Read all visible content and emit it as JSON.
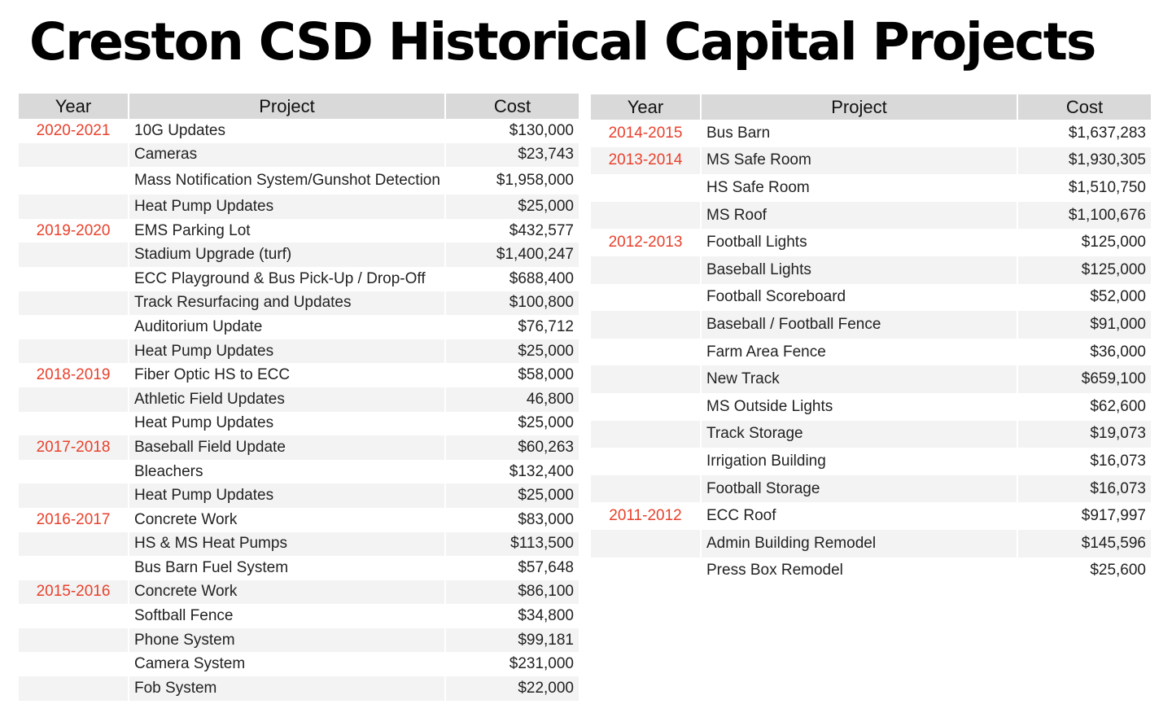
{
  "title": "Creston CSD Historical Capital Projects",
  "headers": {
    "year": "Year",
    "project": "Project",
    "cost": "Cost"
  },
  "left_rows": [
    {
      "year": "2020-2021",
      "project": "10G Updates",
      "cost": "$130,000"
    },
    {
      "year": "",
      "project": "Cameras",
      "cost": "$23,743"
    },
    {
      "year": "",
      "project": "Mass Notification System/Gunshot Detection",
      "cost": "$1,958,000"
    },
    {
      "year": "",
      "project": "Heat Pump Updates",
      "cost": "$25,000"
    },
    {
      "year": "2019-2020",
      "project": "EMS Parking Lot",
      "cost": "$432,577"
    },
    {
      "year": "",
      "project": "Stadium Upgrade (turf)",
      "cost": "$1,400,247"
    },
    {
      "year": "",
      "project": "ECC Playground & Bus Pick-Up / Drop-Off",
      "cost": "$688,400"
    },
    {
      "year": "",
      "project": "Track Resurfacing and Updates",
      "cost": "$100,800"
    },
    {
      "year": "",
      "project": "Auditorium Update",
      "cost": "$76,712"
    },
    {
      "year": "",
      "project": "Heat Pump Updates",
      "cost": "$25,000"
    },
    {
      "year": "2018-2019",
      "project": "Fiber Optic HS to ECC",
      "cost": "$58,000"
    },
    {
      "year": "",
      "project": "Athletic Field Updates",
      "cost": "46,800"
    },
    {
      "year": "",
      "project": "Heat Pump Updates",
      "cost": "$25,000"
    },
    {
      "year": "2017-2018",
      "project": "Baseball Field Update",
      "cost": "$60,263"
    },
    {
      "year": "",
      "project": "Bleachers",
      "cost": "$132,400"
    },
    {
      "year": "",
      "project": "Heat Pump Updates",
      "cost": "$25,000"
    },
    {
      "year": "2016-2017",
      "project": "Concrete Work",
      "cost": "$83,000"
    },
    {
      "year": "",
      "project": "HS & MS Heat Pumps",
      "cost": "$113,500"
    },
    {
      "year": "",
      "project": "Bus Barn Fuel System",
      "cost": "$57,648"
    },
    {
      "year": "2015-2016",
      "project": "Concrete Work",
      "cost": "$86,100"
    },
    {
      "year": "",
      "project": "Softball Fence",
      "cost": "$34,800"
    },
    {
      "year": "",
      "project": "Phone System",
      "cost": "$99,181"
    },
    {
      "year": "",
      "project": "Camera System",
      "cost": "$231,000"
    },
    {
      "year": "",
      "project": "Fob System",
      "cost": "$22,000"
    }
  ],
  "right_rows": [
    {
      "year": "2014-2015",
      "project": "Bus Barn",
      "cost": "$1,637,283"
    },
    {
      "year": "2013-2014",
      "project": "MS Safe Room",
      "cost": "$1,930,305"
    },
    {
      "year": "",
      "project": "HS Safe Room",
      "cost": "$1,510,750"
    },
    {
      "year": "",
      "project": "MS Roof",
      "cost": "$1,100,676"
    },
    {
      "year": "2012-2013",
      "project": "Football Lights",
      "cost": "$125,000"
    },
    {
      "year": "",
      "project": "Baseball Lights",
      "cost": "$125,000"
    },
    {
      "year": "",
      "project": "Football Scoreboard",
      "cost": "$52,000"
    },
    {
      "year": "",
      "project": "Baseball / Football Fence",
      "cost": "$91,000"
    },
    {
      "year": "",
      "project": "Farm Area Fence",
      "cost": "$36,000"
    },
    {
      "year": "",
      "project": "New Track",
      "cost": "$659,100"
    },
    {
      "year": "",
      "project": "MS Outside Lights",
      "cost": "$62,600"
    },
    {
      "year": "",
      "project": "Track Storage",
      "cost": "$19,073"
    },
    {
      "year": "",
      "project": "Irrigation Building",
      "cost": "$16,073"
    },
    {
      "year": "",
      "project": "Football Storage",
      "cost": "$16,073"
    },
    {
      "year": "2011-2012",
      "project": "ECC Roof",
      "cost": "$917,997"
    },
    {
      "year": "",
      "project": "Admin Building Remodel",
      "cost": "$145,596"
    },
    {
      "year": "",
      "project": "Press Box Remodel",
      "cost": "$25,600"
    }
  ],
  "colors": {
    "year_text": "#e8412c",
    "header_bg": "#d9d9d9",
    "stripe_bg": "#f3f3f3"
  }
}
